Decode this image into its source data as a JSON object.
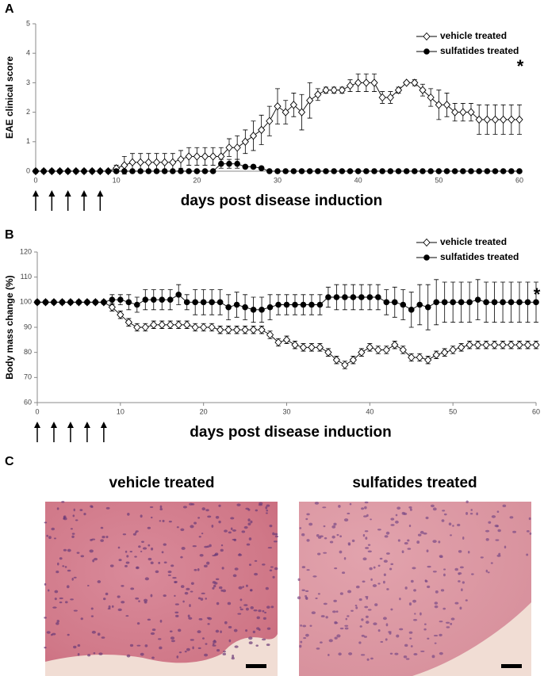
{
  "chart_data": [
    {
      "type": "line",
      "panel_label": "A",
      "y_label": "EAE clinical score",
      "x_label": "days post disease induction",
      "annotation": "*",
      "x": [
        0,
        1,
        2,
        3,
        4,
        5,
        6,
        7,
        8,
        9,
        10,
        11,
        12,
        13,
        14,
        15,
        16,
        17,
        18,
        19,
        20,
        21,
        22,
        23,
        24,
        25,
        26,
        27,
        28,
        29,
        30,
        31,
        32,
        33,
        34,
        35,
        36,
        37,
        38,
        39,
        40,
        41,
        42,
        43,
        44,
        45,
        46,
        47,
        48,
        49,
        50,
        51,
        52,
        53,
        54,
        55,
        56,
        57,
        58,
        59,
        60
      ],
      "series": [
        {
          "name": "vehicle treated",
          "color": "#000000",
          "marker": "diamond-open",
          "values": [
            0,
            0,
            0,
            0,
            0,
            0,
            0,
            0,
            0,
            0,
            0.1,
            0.2,
            0.3,
            0.3,
            0.3,
            0.3,
            0.3,
            0.3,
            0.4,
            0.5,
            0.5,
            0.5,
            0.5,
            0.5,
            0.8,
            0.8,
            1.0,
            1.2,
            1.4,
            1.7,
            2.2,
            2.0,
            2.25,
            2.0,
            2.4,
            2.6,
            2.75,
            2.75,
            2.75,
            2.9,
            3.0,
            3.0,
            3.0,
            2.5,
            2.5,
            2.75,
            3.0,
            3.0,
            2.75,
            2.5,
            2.25,
            2.25,
            2.0,
            2.0,
            2.0,
            1.75,
            1.75,
            1.75,
            1.75,
            1.75,
            1.75
          ],
          "errors": [
            0,
            0,
            0,
            0,
            0,
            0,
            0,
            0,
            0,
            0,
            0.1,
            0.3,
            0.3,
            0.3,
            0.3,
            0.3,
            0.3,
            0.3,
            0.3,
            0.3,
            0.3,
            0.3,
            0.3,
            0.3,
            0.3,
            0.4,
            0.4,
            0.5,
            0.5,
            0.5,
            0.6,
            0.4,
            0.4,
            0.6,
            0.6,
            0.2,
            0.1,
            0.1,
            0.1,
            0.2,
            0.3,
            0.3,
            0.3,
            0.2,
            0.2,
            0.1,
            0.05,
            0.1,
            0.2,
            0.3,
            0.5,
            0.4,
            0.3,
            0.3,
            0.3,
            0.5,
            0.5,
            0.5,
            0.5,
            0.5,
            0.5
          ]
        },
        {
          "name": "sulfatides treated",
          "color": "#000000",
          "marker": "circle-filled",
          "values": [
            0,
            0,
            0,
            0,
            0,
            0,
            0,
            0,
            0,
            0,
            0,
            0,
            0,
            0,
            0,
            0,
            0,
            0,
            0,
            0,
            0,
            0,
            0,
            0.25,
            0.25,
            0.25,
            0.15,
            0.15,
            0.1,
            0,
            0,
            0,
            0,
            0,
            0,
            0,
            0,
            0,
            0,
            0,
            0,
            0,
            0,
            0,
            0,
            0,
            0,
            0,
            0,
            0,
            0,
            0,
            0,
            0,
            0,
            0,
            0,
            0,
            0,
            0,
            0
          ],
          "errors": [
            0,
            0,
            0,
            0,
            0,
            0,
            0,
            0,
            0,
            0,
            0,
            0,
            0,
            0,
            0,
            0,
            0,
            0,
            0,
            0,
            0,
            0,
            0,
            0.15,
            0.15,
            0.15,
            0.05,
            0.05,
            0.05,
            0,
            0,
            0,
            0,
            0,
            0,
            0,
            0,
            0,
            0,
            0,
            0,
            0,
            0,
            0,
            0,
            0,
            0,
            0,
            0,
            0,
            0,
            0,
            0,
            0,
            0,
            0,
            0,
            0,
            0,
            0,
            0
          ]
        }
      ],
      "xlim": [
        0,
        60
      ],
      "xticks": [
        0,
        10,
        20,
        30,
        40,
        50,
        60
      ],
      "ylim": [
        0,
        5
      ],
      "yticks": [
        0,
        1,
        2,
        3,
        4,
        5
      ],
      "legend": "upper right",
      "arrow_days": [
        0,
        2,
        4,
        6,
        8
      ]
    },
    {
      "type": "line",
      "panel_label": "B",
      "y_label": "Body mass change (%)",
      "x_label": "days post disease induction",
      "annotation": "*",
      "x": [
        0,
        1,
        2,
        3,
        4,
        5,
        6,
        7,
        8,
        9,
        10,
        11,
        12,
        13,
        14,
        15,
        16,
        17,
        18,
        19,
        20,
        21,
        22,
        23,
        24,
        25,
        26,
        27,
        28,
        29,
        30,
        31,
        32,
        33,
        34,
        35,
        36,
        37,
        38,
        39,
        40,
        41,
        42,
        43,
        44,
        45,
        46,
        47,
        48,
        49,
        50,
        51,
        52,
        53,
        54,
        55,
        56,
        57,
        58,
        59,
        60
      ],
      "series": [
        {
          "name": "vehicle treated",
          "color": "#000000",
          "marker": "diamond-open",
          "values": [
            100,
            100,
            100,
            100,
            100,
            100,
            100,
            100,
            100,
            98,
            95,
            92,
            90,
            90,
            91,
            91,
            91,
            91,
            91,
            90,
            90,
            90,
            89,
            89,
            89,
            89,
            89,
            89,
            87,
            84,
            85,
            83,
            82,
            82,
            82,
            80,
            77,
            75,
            77,
            80,
            82,
            81,
            81,
            83,
            81,
            78,
            78,
            77,
            79,
            80,
            81,
            82,
            83,
            83,
            83,
            83,
            83,
            83,
            83,
            83,
            83
          ],
          "errors": [
            0.5,
            0.5,
            0.5,
            0.5,
            0.5,
            0.5,
            0.5,
            0.5,
            0.5,
            1.5,
            1.5,
            1.5,
            1.5,
            1.5,
            1.5,
            1.5,
            1.5,
            1.5,
            1.5,
            1.5,
            1.5,
            1.5,
            1.5,
            1.5,
            1.5,
            1.5,
            1.5,
            1.5,
            1.5,
            1.5,
            1.5,
            1.5,
            1.5,
            1.5,
            1.5,
            1.5,
            1.5,
            1.5,
            1.5,
            1.5,
            1.5,
            1.5,
            1.5,
            1.5,
            1.5,
            1.5,
            1.5,
            1.5,
            1.5,
            1.5,
            1.5,
            1.5,
            1.5,
            1.5,
            1.5,
            1.5,
            1.5,
            1.5,
            1.5,
            1.5,
            1.5
          ]
        },
        {
          "name": "sulfatides treated",
          "color": "#000000",
          "marker": "circle-filled",
          "values": [
            100,
            100,
            100,
            100,
            100,
            100,
            100,
            100,
            100,
            101,
            101,
            100,
            99,
            101,
            101,
            101,
            101,
            103,
            100,
            100,
            100,
            100,
            100,
            98,
            99,
            98,
            97,
            97,
            98,
            99,
            99,
            99,
            99,
            99,
            99,
            102,
            102,
            102,
            102,
            102,
            102,
            102,
            100,
            100,
            99,
            97,
            99,
            98,
            100,
            100,
            100,
            100,
            100,
            101,
            100,
            100,
            100,
            100,
            100,
            100,
            100
          ],
          "errors": [
            0.5,
            0.5,
            0.5,
            0.5,
            0.5,
            0.5,
            0.5,
            0.5,
            0.5,
            2,
            2,
            3,
            3,
            4,
            4,
            4,
            4,
            4,
            3,
            5,
            5,
            5,
            5,
            5,
            5,
            5,
            5,
            5,
            5,
            4,
            4,
            4,
            4,
            4,
            4,
            4,
            5,
            5,
            5,
            5,
            5,
            5,
            5,
            6,
            6,
            7,
            8,
            9,
            9,
            8,
            8,
            8,
            8,
            8,
            8,
            8,
            8,
            8,
            8,
            8,
            8
          ]
        }
      ],
      "xlim": [
        0,
        60
      ],
      "xticks": [
        0,
        10,
        20,
        30,
        40,
        50,
        60
      ],
      "ylim": [
        60,
        120
      ],
      "yticks": [
        60,
        70,
        80,
        90,
        100,
        110,
        120
      ],
      "legend": "upper right",
      "arrow_days": [
        0,
        2,
        4,
        6,
        8
      ]
    }
  ],
  "panel_c": {
    "label": "C",
    "titles": [
      "vehicle treated",
      "sulfatides treated"
    ]
  }
}
